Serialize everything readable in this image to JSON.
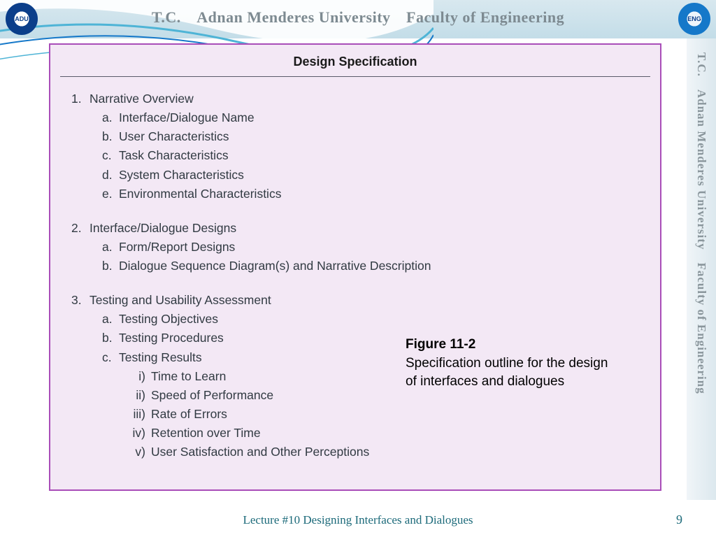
{
  "header": {
    "text": "T.C. Adnan Menderes University Faculty of Engineering",
    "bg_gradient": [
      "#d8e8ef",
      "#c3dde8"
    ],
    "text_color": "#7d8a91",
    "swoosh_colors": [
      "#ffffff",
      "#4eb4d6",
      "#1578c9"
    ]
  },
  "sidebar": {
    "text": "T.C. Adnan Menderes University Faculty of Engineering"
  },
  "spec": {
    "border_color": "#a94db8",
    "background_color": "#f3e8f5",
    "title": "Design Specification",
    "title_fontsize": 18,
    "body_fontsize": 17.5,
    "body_color": "#313a42",
    "sections": [
      {
        "num": "1.",
        "label": "Narrative Overview",
        "items": [
          {
            "num": "a.",
            "label": "Interface/Dialogue Name"
          },
          {
            "num": "b.",
            "label": "User Characteristics"
          },
          {
            "num": "c.",
            "label": "Task Characteristics"
          },
          {
            "num": "d.",
            "label": "System Characteristics"
          },
          {
            "num": "e.",
            "label": "Environmental Characteristics"
          }
        ]
      },
      {
        "num": "2.",
        "label": "Interface/Dialogue Designs",
        "items": [
          {
            "num": "a.",
            "label": "Form/Report Designs"
          },
          {
            "num": "b.",
            "label": "Dialogue Sequence Diagram(s) and Narrative Description"
          }
        ]
      },
      {
        "num": "3.",
        "label": "Testing and Usability Assessment",
        "items": [
          {
            "num": "a.",
            "label": "Testing Objectives"
          },
          {
            "num": "b.",
            "label": "Testing Procedures"
          },
          {
            "num": "c.",
            "label": "Testing Results",
            "sub": [
              {
                "num": "i)",
                "label": "Time to Learn"
              },
              {
                "num": "ii)",
                "label": "Speed of Performance"
              },
              {
                "num": "iii)",
                "label": "Rate of Errors"
              },
              {
                "num": "iv)",
                "label": "Retention over Time"
              },
              {
                "num": "v)",
                "label": "User Satisfaction and Other Perceptions"
              }
            ]
          }
        ]
      }
    ]
  },
  "caption": {
    "figure": "Figure 11-2",
    "text": "Specification outline for the design of interfaces and dialogues",
    "fontsize": 19
  },
  "footer": {
    "text": "Lecture #10 Designing Interfaces and Dialogues",
    "color": "#1c6a7a",
    "page": "9"
  }
}
